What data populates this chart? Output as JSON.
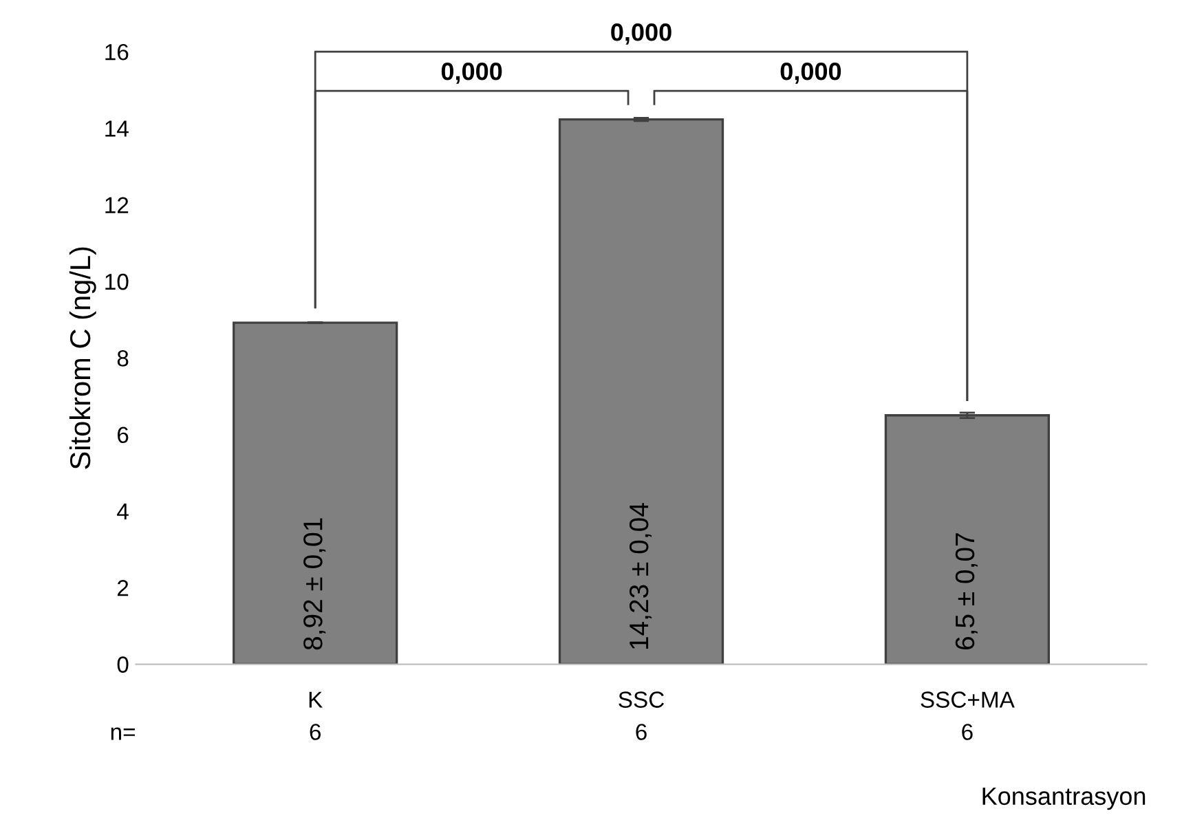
{
  "chart_data": {
    "type": "bar",
    "ylabel": "Sitokrom C (ng/L)",
    "xlabel": "Konsantrasyon",
    "categories": [
      "K",
      "SSC",
      "SSC+MA"
    ],
    "values": [
      8.92,
      14.23,
      6.5
    ],
    "errors": [
      0.01,
      0.04,
      0.07
    ],
    "value_labels": [
      "8,92 ± 0,01",
      "14,23 ± 0,04",
      "6,5 ± 0,07"
    ],
    "color": "#808080",
    "ylim": [
      0,
      16
    ],
    "yticks": [
      0,
      2,
      4,
      6,
      8,
      10,
      12,
      14,
      16
    ],
    "grid": false,
    "legend": false,
    "annotations": [
      "0,000",
      "0,000",
      "0,000",
      "n=",
      "6",
      "6",
      "6"
    ]
  }
}
